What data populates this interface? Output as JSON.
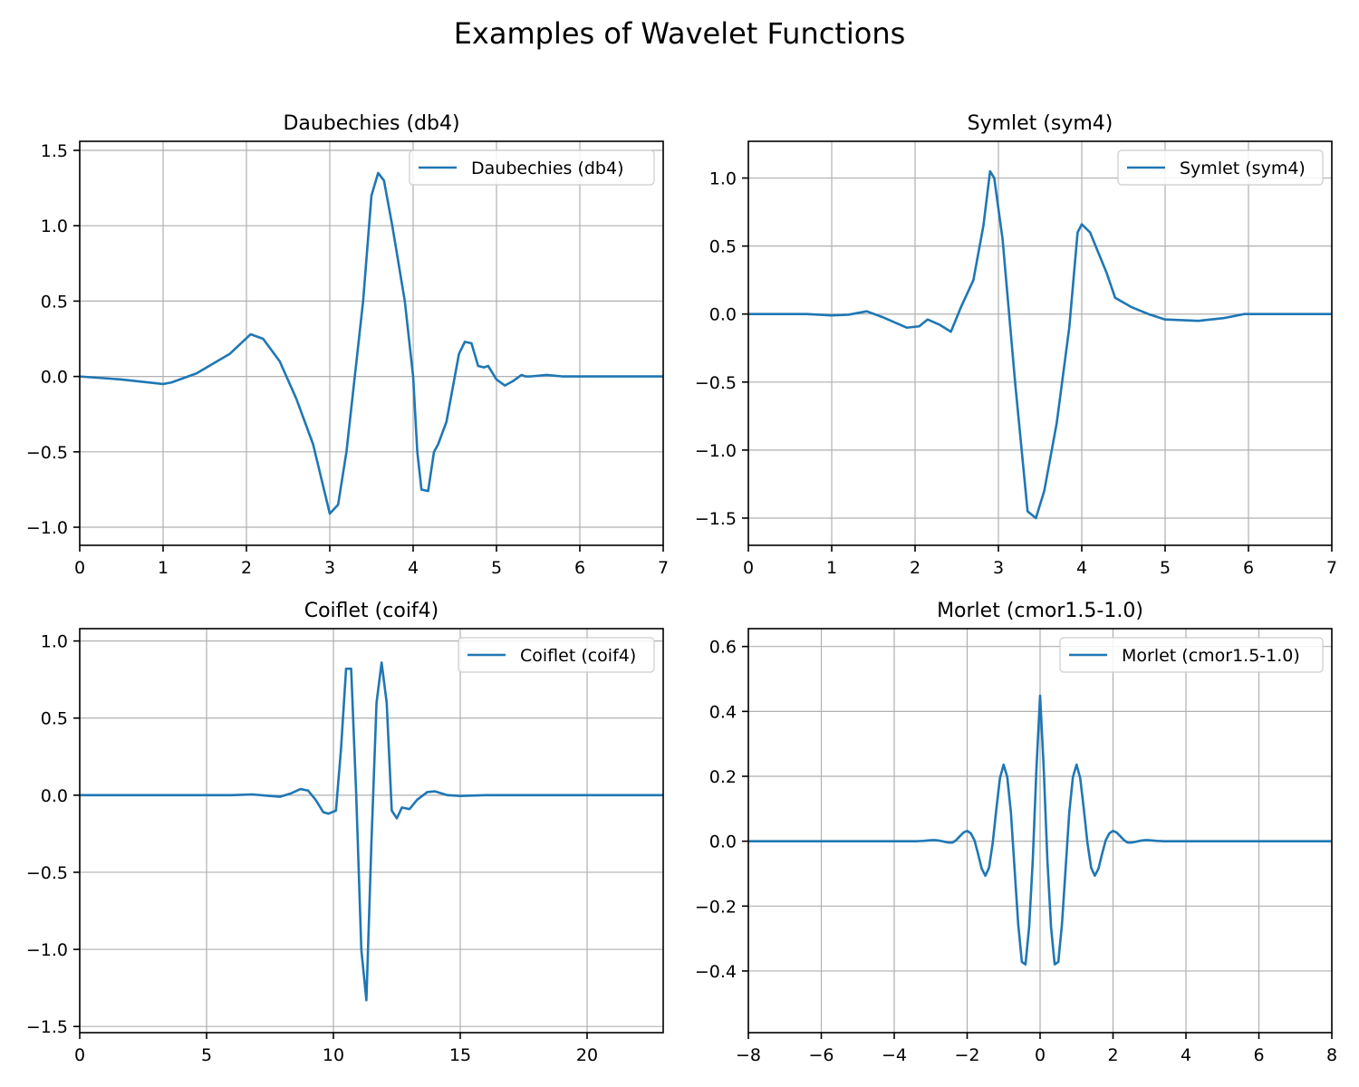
{
  "figure": {
    "title": "Examples of Wavelet Functions"
  },
  "chart_data": [
    {
      "type": "line",
      "title": "Daubechies (db4)",
      "xlim": [
        0,
        7
      ],
      "ylim": [
        -1.12,
        1.56
      ],
      "xticks": [
        0,
        1,
        2,
        3,
        4,
        5,
        6,
        7
      ],
      "yticks": [
        -1.0,
        -0.5,
        0.0,
        0.5,
        1.0,
        1.5
      ],
      "xtick_labels": [
        "0",
        "1",
        "2",
        "3",
        "4",
        "5",
        "6",
        "7"
      ],
      "ytick_labels": [
        "−1.0",
        "−0.5",
        "0.0",
        "0.5",
        "1.0",
        "1.5"
      ],
      "grid": true,
      "legend": "upper right",
      "series": [
        {
          "name": "Daubechies (db4)",
          "color": "#1f77b4",
          "x": [
            0,
            0.5,
            1.0,
            1.1,
            1.4,
            1.8,
            2.05,
            2.2,
            2.4,
            2.6,
            2.8,
            3.0,
            3.1,
            3.2,
            3.3,
            3.4,
            3.5,
            3.58,
            3.65,
            3.75,
            3.9,
            4.0,
            4.05,
            4.1,
            4.18,
            4.25,
            4.3,
            4.4,
            4.5,
            4.55,
            4.62,
            4.7,
            4.78,
            4.85,
            4.9,
            5.0,
            5.1,
            5.2,
            5.3,
            5.35,
            5.4,
            5.6,
            5.8,
            6.0,
            7.0
          ],
          "y": [
            0.0,
            -0.02,
            -0.05,
            -0.04,
            0.02,
            0.15,
            0.28,
            0.25,
            0.1,
            -0.15,
            -0.45,
            -0.91,
            -0.85,
            -0.5,
            0.0,
            0.5,
            1.2,
            1.35,
            1.3,
            1.0,
            0.5,
            0.0,
            -0.5,
            -0.75,
            -0.76,
            -0.5,
            -0.45,
            -0.3,
            0.0,
            0.15,
            0.23,
            0.22,
            0.07,
            0.06,
            0.07,
            -0.02,
            -0.06,
            -0.03,
            0.01,
            0.0,
            0.0,
            0.01,
            0.0,
            0.0,
            0.0
          ]
        }
      ]
    },
    {
      "type": "line",
      "title": "Symlet (sym4)",
      "xlim": [
        0,
        7
      ],
      "ylim": [
        -1.7,
        1.27
      ],
      "xticks": [
        0,
        1,
        2,
        3,
        4,
        5,
        6,
        7
      ],
      "yticks": [
        -1.5,
        -1.0,
        -0.5,
        0.0,
        0.5,
        1.0
      ],
      "xtick_labels": [
        "0",
        "1",
        "2",
        "3",
        "4",
        "5",
        "6",
        "7"
      ],
      "ytick_labels": [
        "−1.5",
        "−1.0",
        "−0.5",
        "0.0",
        "0.5",
        "1.0"
      ],
      "grid": true,
      "legend": "upper right",
      "series": [
        {
          "name": "Symlet (sym4)",
          "color": "#1f77b4",
          "x": [
            0,
            0.7,
            1.0,
            1.2,
            1.42,
            1.6,
            1.9,
            2.05,
            2.15,
            2.3,
            2.43,
            2.55,
            2.7,
            2.82,
            2.9,
            2.95,
            3.05,
            3.2,
            3.35,
            3.45,
            3.55,
            3.7,
            3.85,
            3.95,
            4.0,
            4.1,
            4.2,
            4.3,
            4.4,
            4.6,
            4.8,
            5.0,
            5.4,
            5.7,
            5.95,
            6.2,
            6.5,
            7.0
          ],
          "y": [
            0.0,
            0.0,
            -0.01,
            -0.005,
            0.02,
            -0.02,
            -0.1,
            -0.09,
            -0.04,
            -0.08,
            -0.13,
            0.05,
            0.25,
            0.65,
            1.05,
            1.0,
            0.55,
            -0.5,
            -1.45,
            -1.5,
            -1.3,
            -0.8,
            -0.1,
            0.6,
            0.66,
            0.6,
            0.45,
            0.3,
            0.12,
            0.05,
            0.0,
            -0.04,
            -0.05,
            -0.03,
            0.0,
            0.0,
            0.0,
            0.0
          ]
        }
      ]
    },
    {
      "type": "line",
      "title": "Coiflet (coif4)",
      "xlim": [
        0,
        23
      ],
      "ylim": [
        -1.54,
        1.08
      ],
      "xticks": [
        0,
        5,
        10,
        15,
        20
      ],
      "yticks": [
        -1.5,
        -1.0,
        -0.5,
        0.0,
        0.5,
        1.0
      ],
      "xtick_labels": [
        "0",
        "5",
        "10",
        "15",
        "20"
      ],
      "ytick_labels": [
        "−1.5",
        "−1.0",
        "−0.5",
        "0.0",
        "0.5",
        "1.0"
      ],
      "grid": true,
      "legend": "upper right",
      "series": [
        {
          "name": "Coiflet (coif4)",
          "color": "#1f77b4",
          "x": [
            0,
            6.0,
            6.8,
            7.5,
            7.9,
            8.3,
            8.7,
            9.0,
            9.3,
            9.6,
            9.8,
            10.1,
            10.3,
            10.5,
            10.7,
            10.9,
            11.1,
            11.3,
            11.5,
            11.7,
            11.9,
            12.1,
            12.3,
            12.5,
            12.7,
            13.0,
            13.3,
            13.7,
            14.0,
            14.5,
            15.0,
            16.0,
            23.0
          ],
          "y": [
            0.0,
            0.0,
            0.005,
            -0.005,
            -0.01,
            0.01,
            0.04,
            0.03,
            -0.03,
            -0.11,
            -0.12,
            -0.1,
            0.3,
            0.82,
            0.82,
            0.0,
            -1.0,
            -1.33,
            -0.3,
            0.6,
            0.86,
            0.6,
            -0.1,
            -0.15,
            -0.08,
            -0.09,
            -0.03,
            0.02,
            0.025,
            0.0,
            -0.005,
            0.0,
            0.0
          ]
        }
      ]
    },
    {
      "type": "line",
      "title": "Morlet (cmor1.5-1.0)",
      "xlim": [
        -8,
        8
      ],
      "ylim": [
        -0.59,
        0.655
      ],
      "xticks": [
        -8,
        -6,
        -4,
        -2,
        0,
        2,
        4,
        6,
        8
      ],
      "yticks": [
        -0.4,
        -0.2,
        0.0,
        0.2,
        0.4,
        0.6
      ],
      "xtick_labels": [
        "−8",
        "−6",
        "−4",
        "−2",
        "0",
        "2",
        "4",
        "6",
        "8"
      ],
      "ytick_labels": [
        "−0.4",
        "−0.2",
        "0.0",
        "0.2",
        "0.4",
        "0.6"
      ],
      "grid": true,
      "legend": "upper right",
      "series": [
        {
          "name": "Morlet (cmor1.5-1.0)",
          "color": "#1f77b4",
          "x": [
            -8.0,
            -7.5,
            -7.0,
            -6.5,
            -6.0,
            -5.5,
            -5.0,
            -4.5,
            -4.0,
            -3.8,
            -3.6,
            -3.4,
            -3.2,
            -3.0,
            -2.9,
            -2.8,
            -2.7,
            -2.6,
            -2.5,
            -2.4,
            -2.3,
            -2.2,
            -2.1,
            -2.0,
            -1.9,
            -1.8,
            -1.7,
            -1.6,
            -1.5,
            -1.4,
            -1.3,
            -1.2,
            -1.1,
            -1.0,
            -0.9,
            -0.8,
            -0.7,
            -0.6,
            -0.5,
            -0.4,
            -0.3,
            -0.2,
            -0.1,
            0.0,
            0.1,
            0.2,
            0.3,
            0.4,
            0.5,
            0.6,
            0.7,
            0.8,
            0.9,
            1.0,
            1.1,
            1.2,
            1.3,
            1.4,
            1.5,
            1.6,
            1.7,
            1.8,
            1.9,
            2.0,
            2.1,
            2.2,
            2.3,
            2.4,
            2.5,
            2.6,
            2.7,
            2.8,
            2.9,
            3.0,
            3.2,
            3.4,
            3.6,
            3.8,
            4.0,
            4.5,
            5.0,
            5.5,
            6.0,
            6.5,
            7.0,
            7.5,
            8.0
          ],
          "y": [
            0.0,
            0.0,
            0.0,
            0.0,
            0.0,
            0.0,
            0.0,
            0.0,
            0.0,
            0.0,
            0.0,
            0.0,
            0.001,
            0.003,
            0.0033,
            0.0024,
            0.0003,
            -0.0023,
            -0.0045,
            -0.0041,
            0.0034,
            0.0152,
            0.0266,
            0.0318,
            0.0244,
            0.0029,
            -0.0393,
            -0.0849,
            -0.1064,
            -0.0818,
            -0.0065,
            0.0985,
            0.1946,
            0.2359,
            0.1976,
            0.0882,
            -0.0847,
            -0.2558,
            -0.3719,
            -0.3796,
            -0.2646,
            -0.0573,
            0.2234,
            0.4485,
            0.2234,
            -0.0573,
            -0.2646,
            -0.3796,
            -0.3719,
            -0.2558,
            -0.0847,
            0.0882,
            0.1976,
            0.2359,
            0.1946,
            0.0985,
            -0.0065,
            -0.0818,
            -0.1064,
            -0.0849,
            -0.0393,
            0.0029,
            0.0244,
            0.0318,
            0.0266,
            0.0152,
            0.0034,
            -0.0041,
            -0.0045,
            -0.0023,
            0.0003,
            0.0024,
            0.0033,
            0.003,
            0.001,
            0.0,
            0.0,
            0.0,
            0.0,
            0.0,
            0.0,
            0.0,
            0.0,
            0.0,
            0.0,
            0.0,
            0.0
          ]
        }
      ]
    }
  ]
}
